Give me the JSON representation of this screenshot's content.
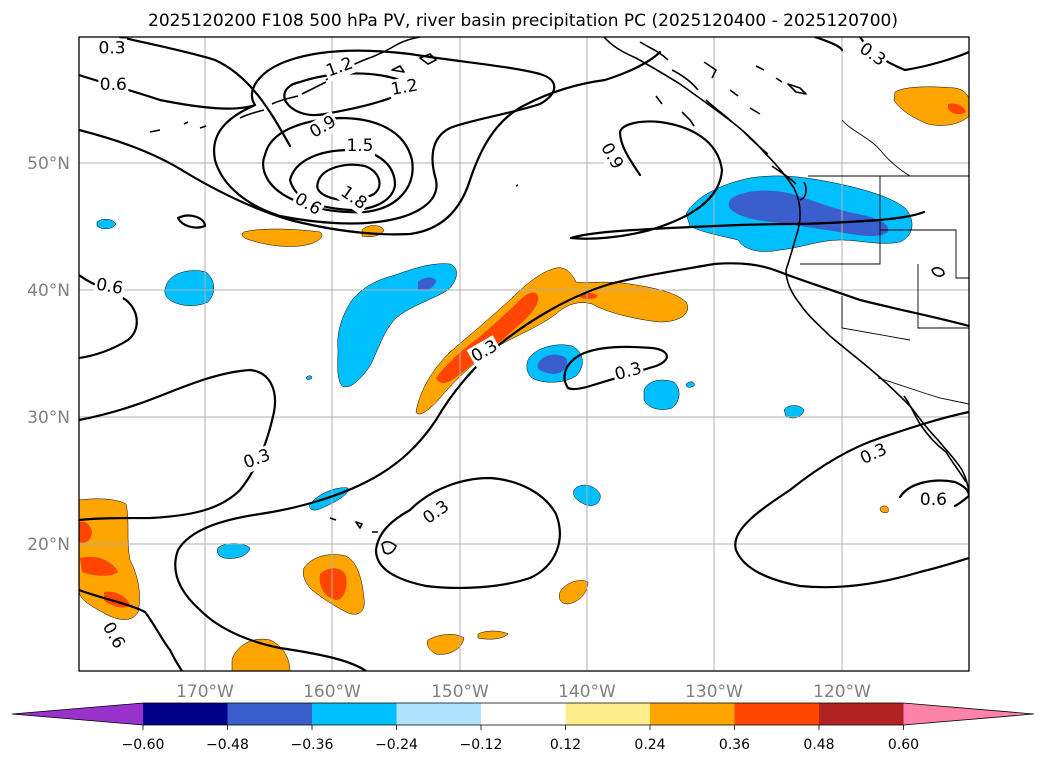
{
  "title": "2025120200 F108 500 hPa PV, river basin precipitation PC (2025120400 - 2025120700)",
  "map": {
    "lon_range": [
      -180,
      -110
    ],
    "lat_range": [
      10,
      60
    ],
    "lat_labels": [
      {
        "lat": 50,
        "text": "50°N"
      },
      {
        "lat": 40,
        "text": "40°N"
      },
      {
        "lat": 30,
        "text": "30°N"
      },
      {
        "lat": 20,
        "text": "20°N"
      }
    ],
    "lon_labels": [
      {
        "lon": -170,
        "text": "170°W"
      },
      {
        "lon": -160,
        "text": "160°W"
      },
      {
        "lon": -150,
        "text": "150°W"
      },
      {
        "lon": -140,
        "text": "140°W"
      },
      {
        "lon": -130,
        "text": "130°W"
      },
      {
        "lon": -120,
        "text": "120°W"
      }
    ],
    "contour_labels": [
      {
        "text": "0.3",
        "lon": -177.4,
        "lat": 59.1,
        "rot": 0
      },
      {
        "text": "0.6",
        "lon": -177.3,
        "lat": 56.2,
        "rot": 0
      },
      {
        "text": "1.2",
        "lon": -159.5,
        "lat": 57.6,
        "rot": -20
      },
      {
        "text": "1.2",
        "lon": -154.4,
        "lat": 56.0,
        "rot": -10
      },
      {
        "text": "0.9",
        "lon": -160.8,
        "lat": 52.9,
        "rot": -30
      },
      {
        "text": "1.5",
        "lon": -157.9,
        "lat": 51.4,
        "rot": 0
      },
      {
        "text": "1.8",
        "lon": -158.4,
        "lat": 47.3,
        "rot": 35
      },
      {
        "text": "0.6",
        "lon": -162.0,
        "lat": 46.8,
        "rot": 30
      },
      {
        "text": "0.9",
        "lon": -138.1,
        "lat": 50.6,
        "rot": 60
      },
      {
        "text": "0.3",
        "lon": -117.6,
        "lat": 58.6,
        "rot": 35
      },
      {
        "text": "0.6",
        "lon": -177.6,
        "lat": 40.3,
        "rot": 10
      },
      {
        "text": "0.3",
        "lon": -148.1,
        "lat": 35.2,
        "rot": -30
      },
      {
        "text": "0.3",
        "lon": -136.8,
        "lat": 33.6,
        "rot": -15
      },
      {
        "text": "0.3",
        "lon": -166.0,
        "lat": 26.7,
        "rot": -20
      },
      {
        "text": "0.3",
        "lon": -151.9,
        "lat": 22.5,
        "rot": -35
      },
      {
        "text": "0.3",
        "lon": -117.5,
        "lat": 27.1,
        "rot": -25
      },
      {
        "text": "0.6",
        "lon": -112.8,
        "lat": 23.5,
        "rot": 0
      },
      {
        "text": "0.6",
        "lon": -177.3,
        "lat": 12.8,
        "rot": 60
      }
    ]
  },
  "colorbar": {
    "levels": [
      "−0.60",
      "−0.48",
      "−0.36",
      "−0.24",
      "−0.12",
      "0.12",
      "0.24",
      "0.36",
      "0.48",
      "0.60"
    ],
    "colors": {
      "under": "#9932cc",
      "c1": "#00008b",
      "c2": "#3a5fcd",
      "c3": "#00bfff",
      "c4": "#b0e2ff",
      "c5": "#ffffff",
      "c6": "#ffec8b",
      "c7": "#ffa500",
      "c8": "#ff4500",
      "c9": "#b22222",
      "over": "#ff82ab"
    }
  },
  "colors": {
    "light_blue": "#00bfff",
    "mid_blue": "#3a5fcd",
    "orange": "#ffa500",
    "red_orange": "#ff4500",
    "grid": "#b0b0b0",
    "tick_label": "#808080"
  }
}
